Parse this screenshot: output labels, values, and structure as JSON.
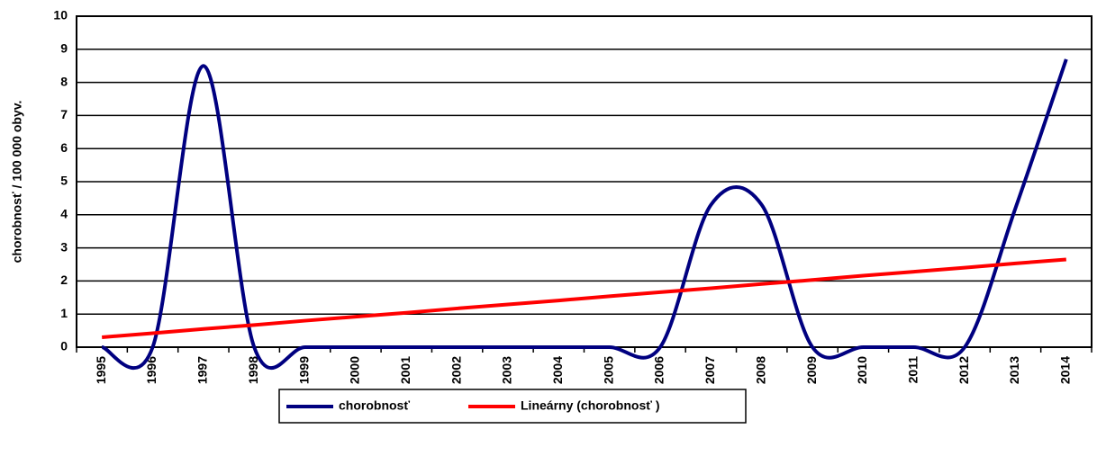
{
  "chart_data": {
    "type": "line",
    "y_label": "chorobnosť / 100 000 obyv.",
    "categories": [
      "1995",
      "1996",
      "1997",
      "1998",
      "1999",
      "2000",
      "2001",
      "2002",
      "2003",
      "2004",
      "2005",
      "2006",
      "2007",
      "2008",
      "2009",
      "2010",
      "2011",
      "2012",
      "2013",
      "2014"
    ],
    "series": [
      {
        "name": "chorobnosť",
        "color": "#000080",
        "smooth": true,
        "values": [
          0,
          0,
          8.5,
          0,
          0,
          0,
          0,
          0,
          0,
          0,
          0,
          0,
          4.3,
          4.3,
          0,
          0,
          0,
          0,
          4.2,
          8.7
        ]
      },
      {
        "name": "Lineárny (chorobnosť )",
        "color": "#ff0000",
        "smooth": false,
        "values": [
          0.3,
          0.42,
          0.55,
          0.67,
          0.8,
          0.92,
          1.04,
          1.17,
          1.29,
          1.41,
          1.54,
          1.66,
          1.78,
          1.91,
          2.03,
          2.16,
          2.28,
          2.4,
          2.53,
          2.65
        ]
      }
    ],
    "ylim": [
      0,
      10
    ],
    "yticks": [
      0,
      1,
      2,
      3,
      4,
      5,
      6,
      7,
      8,
      9,
      10
    ],
    "grid": true,
    "legend": "bottom"
  }
}
